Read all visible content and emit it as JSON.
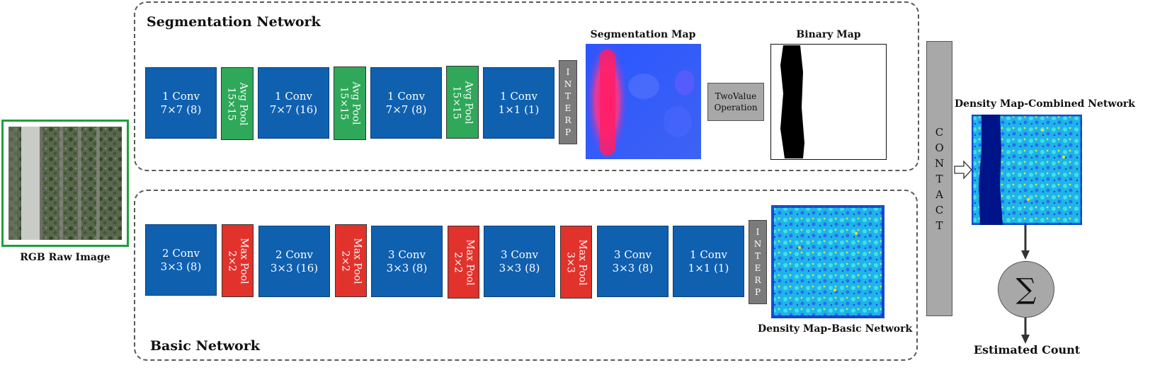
{
  "segmentation_network": {
    "title": "Segmentation Network",
    "layers": [
      {
        "kind": "conv",
        "line1": "1 Conv",
        "line2": "7×7 (8)"
      },
      {
        "kind": "avg",
        "line1": "Avg Pool",
        "line2": "15×15"
      },
      {
        "kind": "conv",
        "line1": "1 Conv",
        "line2": "7×7 (16)"
      },
      {
        "kind": "avg",
        "line1": "Avg Pool",
        "line2": "15×15"
      },
      {
        "kind": "conv",
        "line1": "1 Conv",
        "line2": "7×7 (8)"
      },
      {
        "kind": "avg",
        "line1": "Avg Pool",
        "line2": "15×15"
      },
      {
        "kind": "conv",
        "line1": "1 Conv",
        "line2": "1×1 (1)"
      }
    ],
    "interp_letters": [
      "I",
      "N",
      "T",
      "E",
      "R",
      "P"
    ],
    "segmentation_map_label": "Segmentation Map",
    "twovalue_line1": "TwoValue",
    "twovalue_line2": "Operation",
    "binary_map_label": "Binary Map"
  },
  "basic_network": {
    "title": "Basic Network",
    "layers": [
      {
        "kind": "conv",
        "line1": "2 Conv",
        "line2": "3×3 (8)"
      },
      {
        "kind": "max",
        "line1": "Max Pool",
        "line2": "2×2"
      },
      {
        "kind": "conv",
        "line1": "2 Conv",
        "line2": "3×3 (16)"
      },
      {
        "kind": "max",
        "line1": "Max Pool",
        "line2": "2×2"
      },
      {
        "kind": "conv",
        "line1": "3 Conv",
        "line2": "3×3 (8)"
      },
      {
        "kind": "max",
        "line1": "Max Pool",
        "line2": "2×2"
      },
      {
        "kind": "conv",
        "line1": "3 Conv",
        "line2": "3×3 (8)"
      },
      {
        "kind": "max",
        "line1": "Max Pool",
        "line2": "3×3"
      },
      {
        "kind": "conv",
        "line1": "3 Conv",
        "line2": "3×3 (8)"
      },
      {
        "kind": "conv",
        "line1": "1 Conv",
        "line2": "1×1 (1)"
      }
    ],
    "interp_letters": [
      "I",
      "N",
      "T",
      "E",
      "R",
      "P"
    ],
    "density_map_label": "Density Map-Basic Network"
  },
  "input": {
    "label": "RGB Raw Image"
  },
  "contact_letters": [
    "C",
    "O",
    "N",
    "T",
    "A",
    "C",
    "T"
  ],
  "combined": {
    "label": "Density Map-Combined Network"
  },
  "sum": {
    "symbol": "∑",
    "label": "Estimated Count"
  },
  "colors": {
    "conv": "#1060b0",
    "avg_pool": "#2fa85a",
    "max_pool": "#e2322c",
    "gray": "#a8a8a8",
    "input_border": "#1fa03a"
  }
}
